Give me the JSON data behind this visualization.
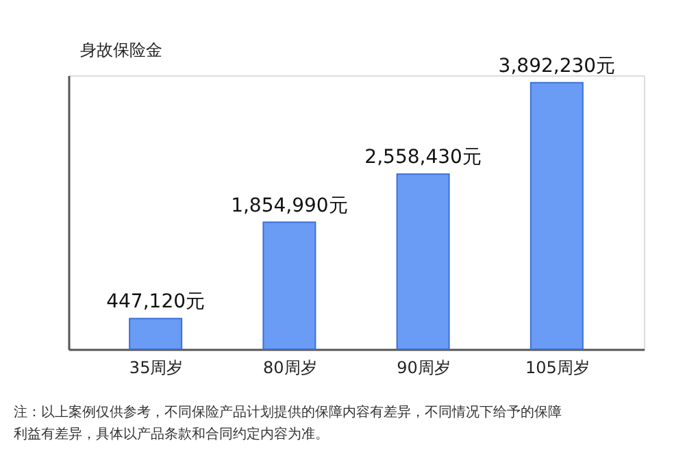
{
  "chart_data": {
    "type": "bar",
    "ylabel": "身故保险金",
    "categories": [
      "35周岁",
      "80周岁",
      "90周岁",
      "105周岁"
    ],
    "values": [
      447120,
      1854990,
      2558430,
      3892230
    ],
    "value_labels": [
      "447,120元",
      "1,854,990元",
      "2,558,430元",
      "3,892,230元"
    ],
    "color": "#6a9cf5",
    "tick_labels": "x",
    "grid": false,
    "annotations": [
      "注：以上案例仅供参考，不同保险产品计划提供的保障内容有差异，不同情况下给予的保障",
      "利益有差异，具体以产品条款和合同约定内容为准。"
    ]
  }
}
